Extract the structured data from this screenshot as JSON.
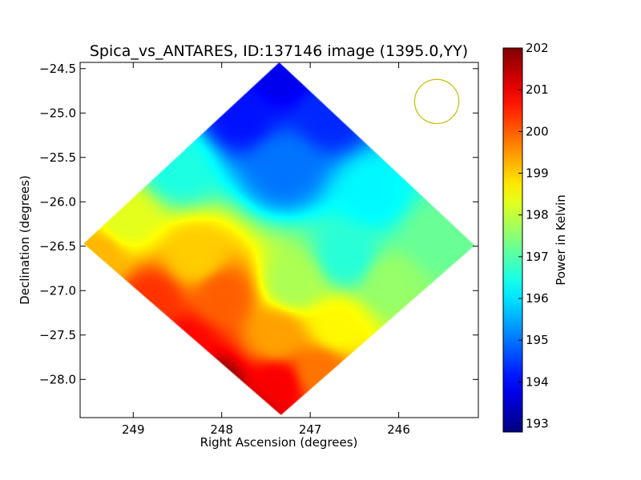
{
  "chart_data": {
    "type": "heatmap",
    "title": "Spica_vs_ANTARES, ID:137146 image (1395.0,YY)",
    "xlabel": "Right Ascension (degrees)",
    "ylabel": "Declination (degrees)",
    "xlim": [
      249.6,
      245.1
    ],
    "ylim": [
      -28.43,
      -24.43
    ],
    "x_ticks": [
      249,
      248,
      247,
      246
    ],
    "x_tick_labels": [
      "249",
      "248",
      "247",
      "246"
    ],
    "y_ticks": [
      -24.5,
      -25.0,
      -25.5,
      -26.0,
      -26.5,
      -27.0,
      -27.5,
      -28.0
    ],
    "y_tick_labels": [
      "−24.5",
      "−25.0",
      "−25.5",
      "−26.0",
      "−26.5",
      "−27.0",
      "−27.5",
      "−28.0"
    ],
    "colorbar": {
      "label": "Power in Kelvin",
      "range": [
        192.8,
        202.0
      ],
      "ticks": [
        193,
        194,
        195,
        196,
        197,
        198,
        199,
        200,
        201,
        202
      ],
      "tick_labels": [
        "193",
        "194",
        "195",
        "196",
        "197",
        "198",
        "199",
        "200",
        "201",
        "202"
      ],
      "colormap": "jet"
    },
    "image_footprint_corners": [
      {
        "ra": 247.35,
        "dec": -24.43
      },
      {
        "ra": 245.14,
        "dec": -26.49
      },
      {
        "ra": 247.33,
        "dec": -28.4
      },
      {
        "ra": 249.56,
        "dec": -26.47
      }
    ],
    "field_values": [
      {
        "ra": 247.35,
        "dec": -24.55,
        "value": 193.8
      },
      {
        "ra": 247.8,
        "dec": -25.0,
        "value": 194.1
      },
      {
        "ra": 246.8,
        "dec": -25.0,
        "value": 194.3
      },
      {
        "ra": 247.3,
        "dec": -25.6,
        "value": 195.0
      },
      {
        "ra": 246.3,
        "dec": -25.9,
        "value": 196.2
      },
      {
        "ra": 248.5,
        "dec": -25.6,
        "value": 196.5
      },
      {
        "ra": 245.6,
        "dec": -26.4,
        "value": 197.2
      },
      {
        "ra": 246.6,
        "dec": -26.6,
        "value": 196.6
      },
      {
        "ra": 249.1,
        "dec": -26.2,
        "value": 198.3
      },
      {
        "ra": 249.4,
        "dec": -26.6,
        "value": 199.2
      },
      {
        "ra": 248.3,
        "dec": -26.6,
        "value": 199.0
      },
      {
        "ra": 247.2,
        "dec": -26.9,
        "value": 197.8
      },
      {
        "ra": 246.1,
        "dec": -26.9,
        "value": 197.6
      },
      {
        "ra": 246.7,
        "dec": -27.4,
        "value": 198.6
      },
      {
        "ra": 248.8,
        "dec": -27.1,
        "value": 200.4
      },
      {
        "ra": 248.0,
        "dec": -27.05,
        "value": 200.0
      },
      {
        "ra": 247.4,
        "dec": -27.5,
        "value": 199.4
      },
      {
        "ra": 248.4,
        "dec": -27.6,
        "value": 200.8
      },
      {
        "ra": 246.9,
        "dec": -27.9,
        "value": 199.8
      },
      {
        "ra": 247.4,
        "dec": -28.05,
        "value": 200.9
      },
      {
        "ra": 248.1,
        "dec": -28.1,
        "value": 202.0
      },
      {
        "ra": 247.6,
        "dec": -28.35,
        "value": 201.2
      }
    ],
    "beam_circle": {
      "ra": 245.57,
      "dec": -24.87,
      "radius_ra_deg": 0.25,
      "color": "#bfbf00"
    },
    "grid": false,
    "legend": "none"
  }
}
